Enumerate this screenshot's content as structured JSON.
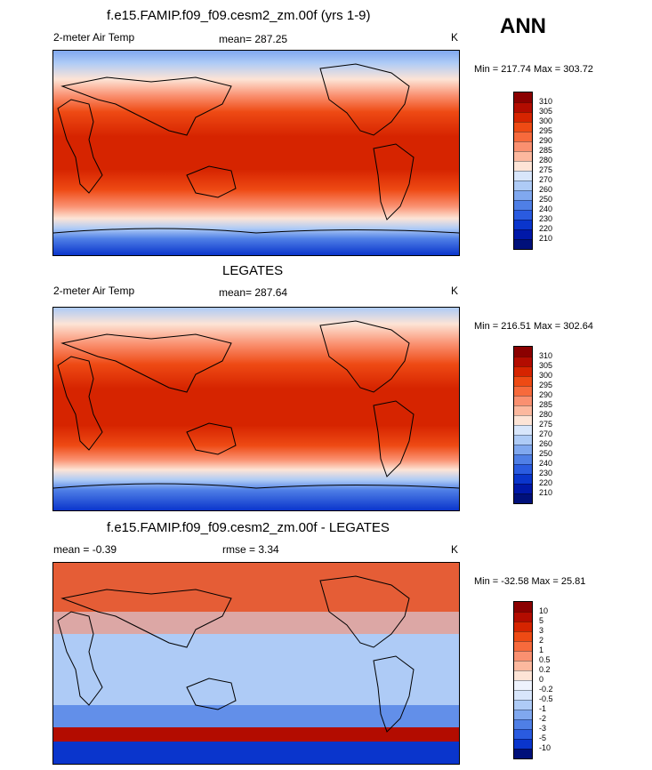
{
  "header": {
    "ann": "ANN"
  },
  "panels": [
    {
      "title": "f.e15.FAMIP.f09_f09.cesm2_zm.00f (yrs 1-9)",
      "variable": "2-meter Air Temp",
      "mean_label": "mean= 287.25",
      "units": "K",
      "minmax": "Min = 217.74 Max = 303.72",
      "colorbar": {
        "labels": [
          "310",
          "305",
          "300",
          "295",
          "290",
          "285",
          "280",
          "275",
          "270",
          "260",
          "250",
          "240",
          "230",
          "220",
          "210"
        ],
        "colors": [
          "#8b0000",
          "#b30c00",
          "#d62400",
          "#ee4a14",
          "#f76a3c",
          "#fa9070",
          "#fcb89e",
          "#fde4d6",
          "#d8e6fb",
          "#aecbf6",
          "#80a8ef",
          "#4f7fe6",
          "#2a5be0",
          "#0a35cc",
          "#0018a8",
          "#00107a"
        ]
      }
    },
    {
      "title": "LEGATES",
      "variable": "2-meter Air Temp",
      "mean_label": "mean= 287.64",
      "units": "K",
      "minmax": "Min = 216.51 Max = 302.64",
      "colorbar": {
        "labels": [
          "310",
          "305",
          "300",
          "295",
          "290",
          "285",
          "280",
          "275",
          "270",
          "260",
          "250",
          "240",
          "230",
          "220",
          "210"
        ],
        "colors": [
          "#8b0000",
          "#b30c00",
          "#d62400",
          "#ee4a14",
          "#f76a3c",
          "#fa9070",
          "#fcb89e",
          "#fde4d6",
          "#d8e6fb",
          "#aecbf6",
          "#80a8ef",
          "#4f7fe6",
          "#2a5be0",
          "#0a35cc",
          "#0018a8",
          "#00107a"
        ]
      }
    },
    {
      "title": "f.e15.FAMIP.f09_f09.cesm2_zm.00f - LEGATES",
      "mean_label": "mean =  -0.39",
      "rmse_label": "rmse =   3.34",
      "units": "K",
      "minmax": "Min = -32.58 Max =  25.81",
      "colorbar": {
        "labels": [
          "10",
          "5",
          "3",
          "2",
          "1",
          "0.5",
          "0.2",
          "0",
          "-0.2",
          "-0.5",
          "-1",
          "-2",
          "-3",
          "-5",
          "-10"
        ],
        "colors": [
          "#8b0000",
          "#b30c00",
          "#d62400",
          "#ee4a14",
          "#f76a3c",
          "#fa9070",
          "#fcb89e",
          "#fde4d6",
          "#eef3fd",
          "#d8e6fb",
          "#aecbf6",
          "#80a8ef",
          "#4f7fe6",
          "#2a5be0",
          "#0a35cc",
          "#00107a"
        ]
      }
    }
  ]
}
